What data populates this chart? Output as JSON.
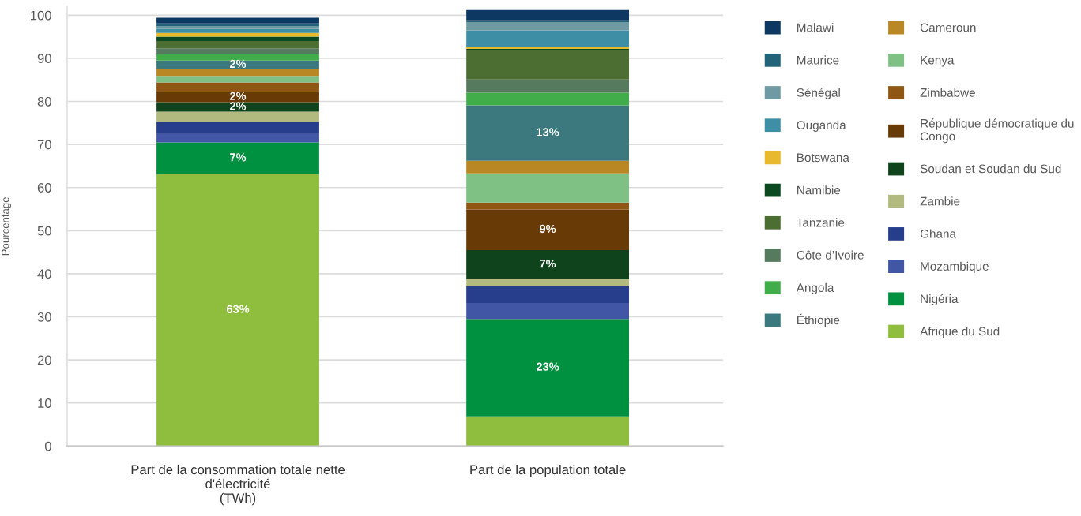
{
  "chart_data": {
    "type": "bar",
    "stacked": true,
    "ylabel": "Pourcentage",
    "categories": [
      "Part de la consommation totale nette\nd'électricité\n(TWh)",
      "Part de la population totale"
    ],
    "ylim": [
      0,
      102
    ],
    "yticks": [
      0,
      10,
      20,
      30,
      40,
      50,
      60,
      70,
      80,
      90,
      100
    ],
    "grid": "y",
    "legend": "right",
    "series": [
      {
        "name": "Afrique du Sud",
        "color": "#8fbe3e",
        "values": [
          63.1,
          6.9
        ],
        "value_labels": [
          "63%",
          null
        ]
      },
      {
        "name": "Nigéria",
        "color": "#009140",
        "values": [
          7.4,
          22.6
        ],
        "value_labels": [
          "7%",
          "23%"
        ]
      },
      {
        "name": "Mozambique",
        "color": "#4157a5",
        "values": [
          2.2,
          3.7
        ]
      },
      {
        "name": "Ghana",
        "color": "#263e8c",
        "values": [
          2.6,
          3.9
        ]
      },
      {
        "name": "Zambie",
        "color": "#b2ba80",
        "values": [
          2.3,
          1.6
        ]
      },
      {
        "name": "Soudan et Soudan du Sud",
        "color": "#0e431b",
        "values": [
          2.2,
          6.8
        ],
        "value_labels": [
          "2%",
          "7%"
        ]
      },
      {
        "name": "République démocratique du\nCongo",
        "color": "#683a05",
        "values": [
          2.4,
          9.4
        ],
        "value_labels": [
          "2%",
          "9%"
        ]
      },
      {
        "name": "Zimbabwe",
        "color": "#8f5614",
        "values": [
          2.2,
          1.6
        ]
      },
      {
        "name": "Kenya",
        "color": "#7fc084",
        "values": [
          1.5,
          6.8
        ]
      },
      {
        "name": "Cameroun",
        "color": "#b98723",
        "values": [
          1.6,
          2.9
        ]
      },
      {
        "name": "Éthiopie",
        "color": "#3c797f",
        "values": [
          2.0,
          12.9
        ],
        "value_labels": [
          "2%",
          "13%"
        ]
      },
      {
        "name": "Angola",
        "color": "#40ad4a",
        "values": [
          1.5,
          2.9
        ]
      },
      {
        "name": "Côte d’Ivoire",
        "color": "#567a5e",
        "values": [
          1.3,
          3.1
        ]
      },
      {
        "name": "Tanzanie",
        "color": "#4d6e33",
        "values": [
          1.7,
          6.7
        ]
      },
      {
        "name": "Namibie",
        "color": "#0b4a21",
        "values": [
          1.0,
          0.4
        ]
      },
      {
        "name": "Botswana",
        "color": "#e8b92d",
        "values": [
          0.9,
          0.4
        ]
      },
      {
        "name": "Ouganda",
        "color": "#3e8ea5",
        "values": [
          0.9,
          3.9
        ]
      },
      {
        "name": "Sénégal",
        "color": "#6f9aa3",
        "values": [
          0.6,
          1.9
        ]
      },
      {
        "name": "Maurice",
        "color": "#22637a",
        "values": [
          0.7,
          0.4
        ]
      },
      {
        "name": "Malawi",
        "color": "#0c3862",
        "values": [
          1.3,
          2.4
        ]
      }
    ]
  }
}
